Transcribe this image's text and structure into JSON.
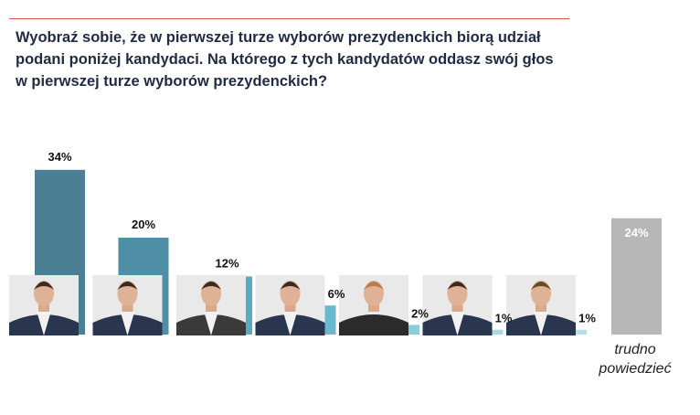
{
  "question": "Wyobraź sobie, że w pierwszej turze wyborów prezydenckich biorą udział podani poniżej kandydaci. Na którego z tych kandydatów oddasz swój głos w pierwszej turze wyborów prezydenckich?",
  "colors": {
    "rule": "#d9534f",
    "bars": [
      "#4a7f94",
      "#4e8fa6",
      "#5aa9c2",
      "#6ab8ce",
      "#8ccbdc",
      "#a9d8e6",
      "#b8deea"
    ],
    "undecided": "#b7b7b7"
  },
  "icons": [
    "candidate-1-portrait",
    "candidate-2-portrait",
    "candidate-3-portrait",
    "candidate-4-portrait",
    "candidate-5-portrait",
    "candidate-6-portrait",
    "candidate-7-portrait"
  ],
  "chart_data": {
    "type": "bar",
    "values": [
      34,
      20,
      12,
      6,
      2,
      1,
      1
    ],
    "value_labels": [
      "34%",
      "20%",
      "12%",
      "6%",
      "2%",
      "1%",
      "1%"
    ],
    "extra_bar": {
      "category": "trudno powiedzieć",
      "value": 24,
      "value_label": "24%"
    },
    "ylim": [
      0,
      34
    ],
    "grid": false
  }
}
